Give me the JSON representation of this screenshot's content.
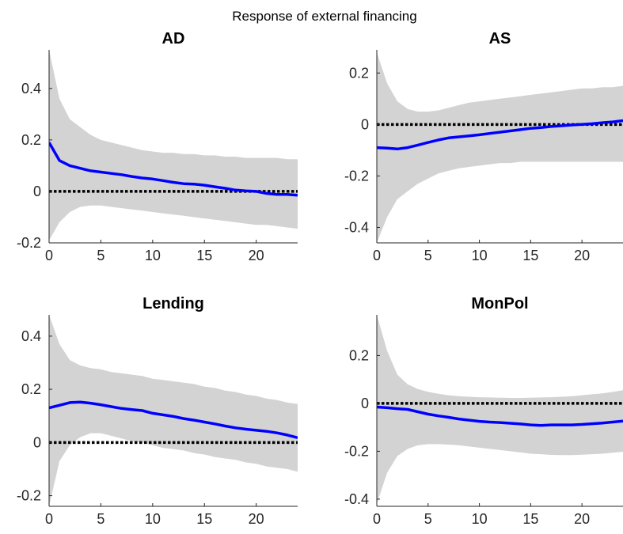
{
  "figure": {
    "title": "Response of external financing"
  },
  "chart_data": [
    {
      "type": "area",
      "title": "AD",
      "xlabel": "",
      "ylabel": "",
      "xlim": [
        0,
        24
      ],
      "ylim": [
        -0.2,
        0.55
      ],
      "xticks": [
        0,
        5,
        10,
        15,
        20
      ],
      "yticks": [
        -0.2,
        0,
        0.2,
        0.4
      ],
      "ytick_labels": [
        "-0.2",
        "0",
        "0.2",
        "0.4"
      ],
      "grid": false,
      "zero_line": true,
      "colors": {
        "response": "#0000ff",
        "band": "#d3d3d3",
        "zero": "#000000"
      },
      "x": [
        0,
        1,
        2,
        3,
        4,
        5,
        6,
        7,
        8,
        9,
        10,
        11,
        12,
        13,
        14,
        15,
        16,
        17,
        18,
        19,
        20,
        21,
        22,
        23,
        24
      ],
      "series": [
        {
          "role": "response",
          "values": [
            0.19,
            0.12,
            0.1,
            0.09,
            0.08,
            0.075,
            0.07,
            0.065,
            0.058,
            0.052,
            0.048,
            0.042,
            0.035,
            0.03,
            0.028,
            0.024,
            0.018,
            0.012,
            0.005,
            0.002,
            0.0,
            -0.008,
            -0.012,
            -0.012,
            -0.015
          ]
        },
        {
          "role": "upper",
          "values": [
            0.55,
            0.36,
            0.28,
            0.25,
            0.22,
            0.2,
            0.19,
            0.18,
            0.17,
            0.16,
            0.155,
            0.15,
            0.15,
            0.145,
            0.145,
            0.14,
            0.14,
            0.135,
            0.135,
            0.13,
            0.13,
            0.13,
            0.13,
            0.125,
            0.125
          ]
        },
        {
          "role": "lower",
          "values": [
            -0.19,
            -0.12,
            -0.08,
            -0.06,
            -0.055,
            -0.055,
            -0.06,
            -0.065,
            -0.07,
            -0.075,
            -0.08,
            -0.085,
            -0.09,
            -0.095,
            -0.1,
            -0.105,
            -0.11,
            -0.115,
            -0.12,
            -0.125,
            -0.13,
            -0.13,
            -0.135,
            -0.14,
            -0.145
          ]
        }
      ]
    },
    {
      "type": "area",
      "title": "AS",
      "xlabel": "",
      "ylabel": "",
      "xlim": [
        0,
        24
      ],
      "ylim": [
        -0.46,
        0.29
      ],
      "xticks": [
        0,
        5,
        10,
        15,
        20
      ],
      "yticks": [
        -0.4,
        -0.2,
        0,
        0.2
      ],
      "ytick_labels": [
        "-0.4",
        "-0.2",
        "0",
        "0.2"
      ],
      "grid": false,
      "zero_line": true,
      "colors": {
        "response": "#0000ff",
        "band": "#d3d3d3",
        "zero": "#000000"
      },
      "x": [
        0,
        1,
        2,
        3,
        4,
        5,
        6,
        7,
        8,
        9,
        10,
        11,
        12,
        13,
        14,
        15,
        16,
        17,
        18,
        19,
        20,
        21,
        22,
        23,
        24
      ],
      "series": [
        {
          "role": "response",
          "values": [
            -0.09,
            -0.092,
            -0.095,
            -0.09,
            -0.08,
            -0.07,
            -0.06,
            -0.052,
            -0.048,
            -0.044,
            -0.04,
            -0.035,
            -0.03,
            -0.025,
            -0.02,
            -0.015,
            -0.012,
            -0.008,
            -0.005,
            -0.002,
            0.0,
            0.003,
            0.007,
            0.01,
            0.015
          ]
        },
        {
          "role": "upper",
          "values": [
            0.28,
            0.16,
            0.09,
            0.06,
            0.05,
            0.05,
            0.055,
            0.065,
            0.075,
            0.085,
            0.09,
            0.095,
            0.1,
            0.105,
            0.11,
            0.115,
            0.12,
            0.125,
            0.13,
            0.135,
            0.14,
            0.14,
            0.145,
            0.145,
            0.15
          ]
        },
        {
          "role": "lower",
          "values": [
            -0.46,
            -0.36,
            -0.29,
            -0.26,
            -0.23,
            -0.21,
            -0.19,
            -0.18,
            -0.17,
            -0.165,
            -0.16,
            -0.155,
            -0.15,
            -0.15,
            -0.145,
            -0.145,
            -0.145,
            -0.145,
            -0.145,
            -0.145,
            -0.145,
            -0.145,
            -0.145,
            -0.145,
            -0.145
          ]
        }
      ]
    },
    {
      "type": "area",
      "title": "Lending",
      "xlabel": "",
      "ylabel": "",
      "xlim": [
        0,
        24
      ],
      "ylim": [
        -0.24,
        0.48
      ],
      "xticks": [
        0,
        5,
        10,
        15,
        20
      ],
      "yticks": [
        -0.2,
        0,
        0.2,
        0.4
      ],
      "ytick_labels": [
        "-0.2",
        "0",
        "0.2",
        "0.4"
      ],
      "grid": false,
      "zero_line": true,
      "colors": {
        "response": "#0000ff",
        "band": "#d3d3d3",
        "zero": "#000000"
      },
      "x": [
        0,
        1,
        2,
        3,
        4,
        5,
        6,
        7,
        8,
        9,
        10,
        11,
        12,
        13,
        14,
        15,
        16,
        17,
        18,
        19,
        20,
        21,
        22,
        23,
        24
      ],
      "series": [
        {
          "role": "response",
          "values": [
            0.13,
            0.14,
            0.15,
            0.152,
            0.148,
            0.142,
            0.135,
            0.128,
            0.124,
            0.12,
            0.11,
            0.104,
            0.098,
            0.09,
            0.084,
            0.077,
            0.07,
            0.062,
            0.055,
            0.05,
            0.046,
            0.042,
            0.036,
            0.028,
            0.018
          ]
        },
        {
          "role": "upper",
          "values": [
            0.48,
            0.37,
            0.31,
            0.29,
            0.28,
            0.275,
            0.265,
            0.26,
            0.255,
            0.25,
            0.24,
            0.235,
            0.23,
            0.225,
            0.22,
            0.21,
            0.205,
            0.195,
            0.19,
            0.18,
            0.175,
            0.165,
            0.16,
            0.15,
            0.145
          ]
        },
        {
          "role": "lower",
          "values": [
            -0.24,
            -0.07,
            -0.01,
            0.02,
            0.035,
            0.035,
            0.025,
            0.015,
            0.005,
            0.0,
            -0.01,
            -0.02,
            -0.025,
            -0.03,
            -0.04,
            -0.045,
            -0.055,
            -0.06,
            -0.065,
            -0.075,
            -0.08,
            -0.09,
            -0.095,
            -0.1,
            -0.11
          ]
        }
      ]
    },
    {
      "type": "area",
      "title": "MonPol",
      "xlabel": "",
      "ylabel": "",
      "xlim": [
        0,
        24
      ],
      "ylim": [
        -0.43,
        0.37
      ],
      "xticks": [
        0,
        5,
        10,
        15,
        20
      ],
      "yticks": [
        -0.4,
        -0.2,
        0,
        0.2
      ],
      "ytick_labels": [
        "-0.4",
        "-0.2",
        "0",
        "0.2"
      ],
      "grid": false,
      "zero_line": true,
      "colors": {
        "response": "#0000ff",
        "band": "#d3d3d3",
        "zero": "#000000"
      },
      "x": [
        0,
        1,
        2,
        3,
        4,
        5,
        6,
        7,
        8,
        9,
        10,
        11,
        12,
        13,
        14,
        15,
        16,
        17,
        18,
        19,
        20,
        21,
        22,
        23,
        24
      ],
      "series": [
        {
          "role": "response",
          "values": [
            -0.015,
            -0.018,
            -0.022,
            -0.025,
            -0.035,
            -0.045,
            -0.052,
            -0.058,
            -0.065,
            -0.07,
            -0.075,
            -0.078,
            -0.08,
            -0.083,
            -0.086,
            -0.09,
            -0.092,
            -0.09,
            -0.09,
            -0.09,
            -0.088,
            -0.085,
            -0.082,
            -0.078,
            -0.074
          ]
        },
        {
          "role": "upper",
          "values": [
            0.37,
            0.22,
            0.12,
            0.08,
            0.06,
            0.048,
            0.04,
            0.034,
            0.03,
            0.028,
            0.026,
            0.025,
            0.024,
            0.023,
            0.023,
            0.024,
            0.025,
            0.026,
            0.028,
            0.03,
            0.034,
            0.038,
            0.042,
            0.048,
            0.055
          ]
        },
        {
          "role": "lower",
          "values": [
            -0.42,
            -0.29,
            -0.22,
            -0.19,
            -0.175,
            -0.17,
            -0.17,
            -0.172,
            -0.175,
            -0.18,
            -0.185,
            -0.19,
            -0.195,
            -0.2,
            -0.205,
            -0.21,
            -0.212,
            -0.215,
            -0.216,
            -0.216,
            -0.214,
            -0.212,
            -0.21,
            -0.206,
            -0.202
          ]
        }
      ]
    }
  ]
}
